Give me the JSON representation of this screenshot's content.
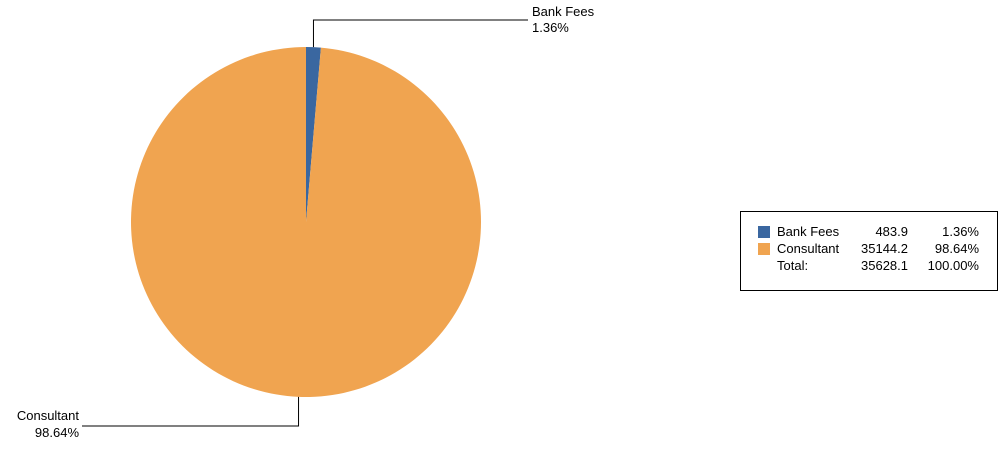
{
  "chart_data": {
    "type": "pie",
    "title": "",
    "slices": [
      {
        "label": "Bank Fees",
        "value": 483.9,
        "percent": "1.36%",
        "color": "#3a67a0"
      },
      {
        "label": "Consultant",
        "value": 35144.2,
        "percent": "98.64%",
        "color": "#f0a450"
      }
    ],
    "legend": {
      "placement": "right",
      "rows": [
        {
          "name": "Bank Fees",
          "value": "483.9",
          "percent": "1.36%",
          "color": "#3a67a0"
        },
        {
          "name": "Consultant",
          "value": "35144.2",
          "percent": "98.64%",
          "color": "#f0a450"
        }
      ],
      "total": {
        "label": "Total:",
        "value": "35628.1",
        "percent": "100.00%"
      }
    },
    "callouts": [
      {
        "label": "Bank Fees",
        "percent": "1.36%"
      },
      {
        "label": "Consultant",
        "percent": "98.64%"
      }
    ]
  }
}
